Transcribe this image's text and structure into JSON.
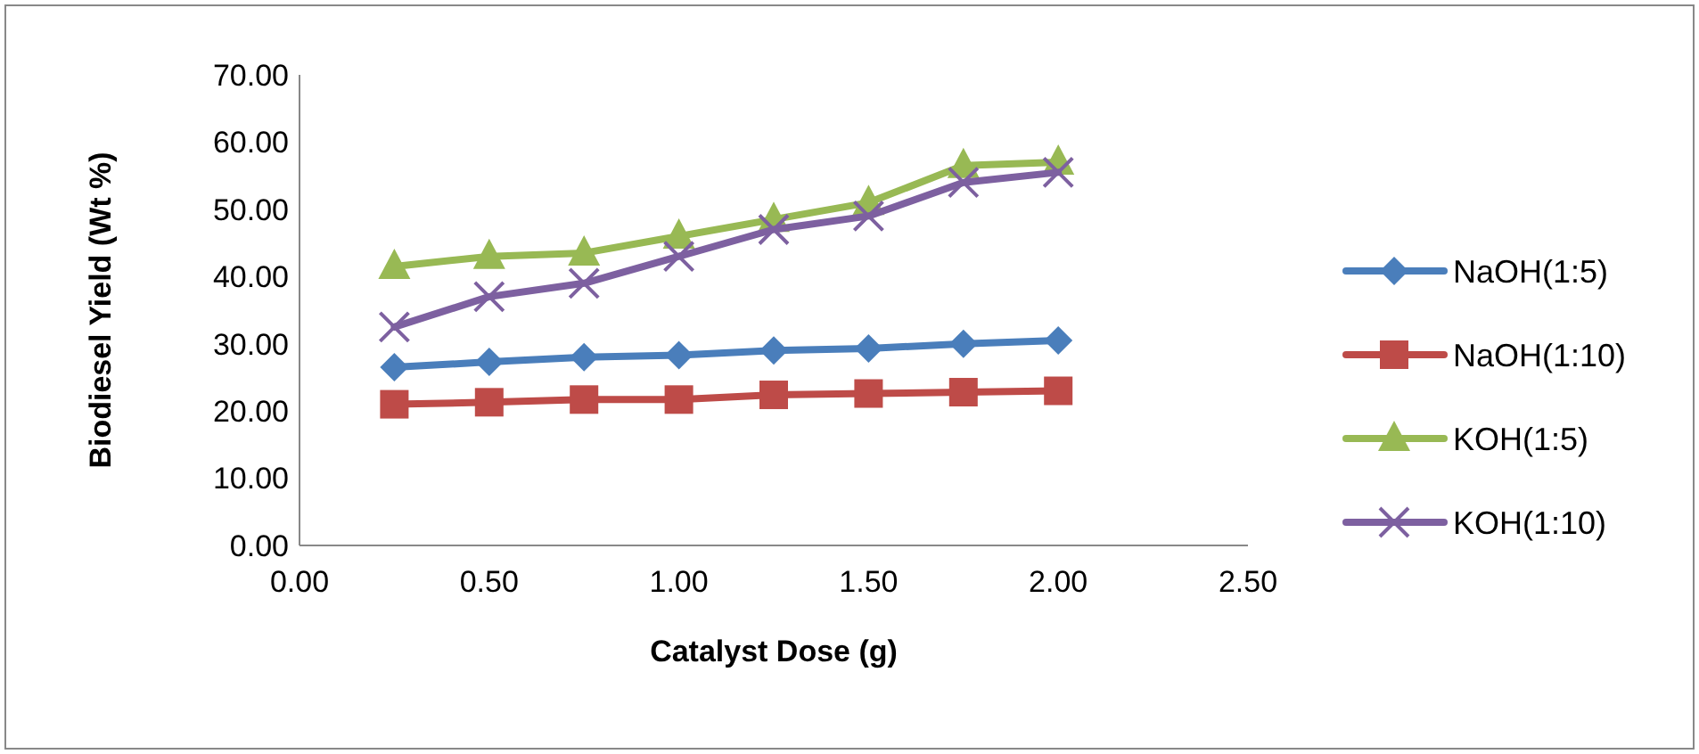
{
  "chart_data": {
    "type": "line",
    "xlabel": "Catalyst Dose (g)",
    "ylabel": "Biodiesel Yield (Wt %)",
    "x": [
      0.25,
      0.5,
      0.75,
      1.0,
      1.25,
      1.5,
      1.75,
      2.0
    ],
    "series": [
      {
        "name": "NaOH(1:5)",
        "color": "#4a7ebb",
        "marker": "diamond",
        "values": [
          26.5,
          27.3,
          28.0,
          28.3,
          29.0,
          29.3,
          30.0,
          30.5
        ]
      },
      {
        "name": "NaOH(1:10)",
        "color": "#be4b48",
        "marker": "square",
        "values": [
          21.0,
          21.3,
          21.7,
          21.7,
          22.4,
          22.6,
          22.8,
          23.0
        ]
      },
      {
        "name": "KOH(1:5)",
        "color": "#98b954",
        "marker": "triangle",
        "values": [
          41.5,
          43.0,
          43.5,
          46.0,
          48.5,
          51.0,
          56.5,
          57.0
        ]
      },
      {
        "name": "KOH(1:10)",
        "color": "#7d60a0",
        "marker": "cross",
        "values": [
          32.5,
          37.0,
          39.0,
          43.0,
          47.0,
          49.0,
          54.0,
          55.5
        ]
      }
    ],
    "xlim": [
      0,
      2.5
    ],
    "xticks": [
      {
        "value": 0,
        "label": "0.00"
      },
      {
        "value": 0.5,
        "label": "0.50"
      },
      {
        "value": 1,
        "label": "1.00"
      },
      {
        "value": 1.5,
        "label": "1.50"
      },
      {
        "value": 2,
        "label": "2.00"
      },
      {
        "value": 2.5,
        "label": "2.50"
      }
    ],
    "ylim": [
      0,
      70
    ],
    "yticks": [
      {
        "value": 0,
        "label": "0.00"
      },
      {
        "value": 10,
        "label": "10.00"
      },
      {
        "value": 20,
        "label": "20.00"
      },
      {
        "value": 30,
        "label": "30.00"
      },
      {
        "value": 40,
        "label": "40.00"
      },
      {
        "value": 50,
        "label": "50.00"
      },
      {
        "value": 60,
        "label": "60.00"
      },
      {
        "value": 70,
        "label": "70.00"
      }
    ],
    "grid": false,
    "legend": "right",
    "line_style": "solid"
  }
}
